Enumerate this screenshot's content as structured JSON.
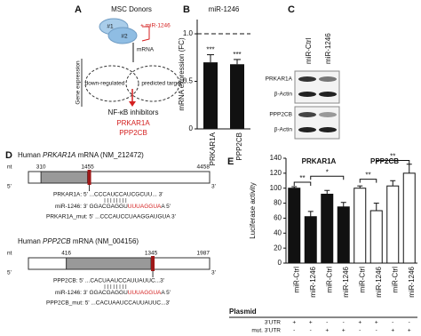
{
  "panels": {
    "A": {
      "label": "A",
      "donors": "MSC Donors",
      "donor_ids": [
        "#1",
        "#2"
      ],
      "treatment": "+ miR-1246",
      "mrna": "mRNA",
      "axis_label": "Gene expression",
      "sets": [
        "down-regulated",
        "predicted target"
      ],
      "result_title": "NF-κB inhibitors",
      "targets": [
        "PRKAR1A",
        "PPP2CB"
      ]
    },
    "C": {
      "label": "C",
      "lanes": [
        "miR-Ctrl",
        "miR-1246"
      ],
      "rows": [
        "PRKAR1A",
        "β-Actin",
        "PPP2CB",
        "β-Actin"
      ]
    },
    "D": {
      "label": "D",
      "genes": [
        {
          "prefix": "Human ",
          "gene": "PRKAR1A",
          "suffix": " mRNA (NM_212472)",
          "nt": "nt",
          "start": "1",
          "cds_start": "310",
          "cds_end": "1455",
          "end": "4458",
          "five": "5'",
          "three": "3'",
          "target": "PRKAR1A: 5' ...CCCAUCCAUCGCUU... 3'",
          "mir_a": "miR-1246: 3' GGACGAGGU",
          "mir_red": "UUUAGGUA",
          "mir_b": "A 5'",
          "mut": "PRKAR1A_mut: 5' ...CCCAUCCUAAGGAUGUA 3'"
        },
        {
          "prefix": "Human ",
          "gene": "PPP2CB",
          "suffix": " mRNA (NM_004156)",
          "nt": "nt",
          "start": "1",
          "cds_start": "416",
          "cds_end": "1345",
          "end": "1987",
          "five": "5'",
          "three": "3'",
          "target": "PPP2CB: 5' ...CACUAAUCCAUUAUUC...3'",
          "mir_a": "miR-1246: 3' GGACGAGGU",
          "mir_red": "UUUAGGUA",
          "mir_b": "A 5'",
          "mut": "PPP2CB_mut: 5' ...CACUAAUCCAUUAUUC...3'"
        }
      ]
    }
  },
  "chart_data": [
    {
      "type": "bar",
      "panel": "B",
      "title": "miR-1246",
      "ylabel": "mRNA expression (FC)",
      "categories": [
        "PRKAR1A",
        "PPP2CB"
      ],
      "values": [
        0.7,
        0.68
      ],
      "errors": [
        0.08,
        0.05
      ],
      "color": "#111111",
      "annotations": [
        "***",
        "***"
      ],
      "ylim": [
        0,
        1.15
      ],
      "yticks": [
        0,
        0.5,
        {
          "value": 1,
          "label": "1.0"
        }
      ],
      "reference_line": 1
    },
    {
      "type": "grouped-bar",
      "panel": "E",
      "ylabel": "Luciferase activity",
      "groups": [
        {
          "name": "PRKAR1A",
          "color": "#111111",
          "categories": [
            "miR-Ctrl",
            "miR-1246",
            "miR-Ctrl",
            "miR-1246"
          ],
          "values": [
            100,
            62,
            92,
            75
          ],
          "errors": [
            2,
            7,
            5,
            6
          ]
        },
        {
          "name": "PPP2CB",
          "color": "#ffffff",
          "categories": [
            "miR-Ctrl",
            "miR-1246",
            "miR-Ctrl",
            "miR-1246"
          ],
          "values": [
            100,
            70,
            103,
            120
          ],
          "errors": [
            3,
            10,
            7,
            12
          ]
        }
      ],
      "annotations": [
        "**",
        "*",
        "**",
        "**"
      ],
      "ylim": [
        0,
        140
      ],
      "yticks": [
        0,
        20,
        40,
        60,
        80,
        100,
        120,
        140
      ],
      "plasmid": {
        "title": "Plasmid",
        "rows": [
          {
            "label": "3'UTR",
            "cells": [
              "+",
              "+",
              "-",
              "-",
              "+",
              "+",
              "-",
              "-"
            ]
          },
          {
            "label": "mut. 3'UTR",
            "cells": [
              "-",
              "-",
              "+",
              "+",
              "-",
              "-",
              "+",
              "+"
            ]
          }
        ]
      }
    }
  ]
}
